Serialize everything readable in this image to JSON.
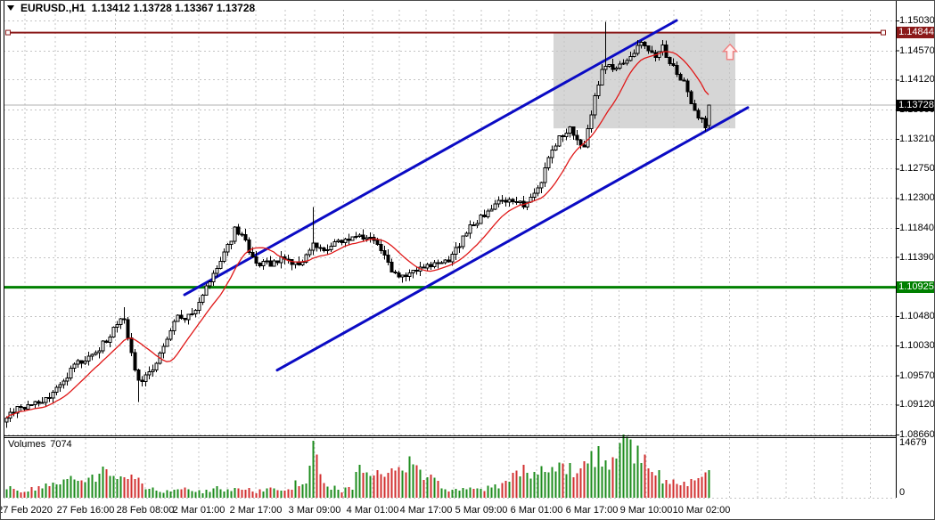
{
  "header": {
    "symbol_timeframe": "EURUSD.,H1",
    "ohlc": "1.13412 1.13728 1.13367 1.13728"
  },
  "chart_data": {
    "type": "candlestick",
    "symbol": "EURUSD.",
    "timeframe": "H1",
    "title": "EURUSD.,H1 1.13412 1.13728 1.13367 1.13728",
    "current_bar": {
      "open": 1.13412,
      "high": 1.13728,
      "low": 1.13367,
      "close": 1.13728
    },
    "price_ticks": [
      "1.15030",
      "1.14570",
      "1.14120",
      "1.13660",
      "1.13210",
      "1.12750",
      "1.12300",
      "1.11840",
      "1.11390",
      "1.10480",
      "1.10030",
      "1.09570",
      "1.09120",
      "1.08660"
    ],
    "time_ticks": [
      "27 Feb 2020",
      "27 Feb 16:00",
      "28 Feb 08:00",
      "2 Mar 01:00",
      "2 Mar 17:00",
      "3 Mar 09:00",
      "4 Mar 01:00",
      "4 Mar 17:00",
      "5 Mar 09:00",
      "6 Mar 01:00",
      "6 Mar 17:00",
      "9 Mar 10:00",
      "10 Mar 02:00"
    ],
    "ylim": [
      1.0866,
      1.1503
    ],
    "levels": {
      "resistance": {
        "price": "1.14844",
        "color": "#8b1a1a"
      },
      "current": {
        "price": "1.13728",
        "color": "#000000"
      },
      "support": {
        "price": "1.10925",
        "color": "#008000"
      }
    },
    "channel": {
      "color": "#0b0bc4",
      "upper_line": {
        "from": [
          50,
          1.1081
        ],
        "to": [
          188,
          1.1503
        ]
      },
      "lower_line": {
        "from": [
          76,
          1.0965
        ],
        "to": [
          208,
          1.1369
        ]
      }
    },
    "highlight_zone": {
      "from_bar": 154,
      "to_bar": 204,
      "price_top": 1.1484,
      "price_bottom": 1.1337,
      "color": "#d6d6d6"
    },
    "signal_arrow": {
      "bar": 203,
      "price": 1.1454,
      "direction": "up",
      "color": "#ef7d7d"
    },
    "ma_line": {
      "color": "#e01818"
    },
    "candle_colors": {
      "bull_fill": "#ffffff",
      "bear_fill": "#000000",
      "outline": "#000000"
    },
    "bars_visible": 198,
    "price_path_anchors": [
      [
        0,
        1.0893
      ],
      [
        3,
        1.0905
      ],
      [
        6,
        1.0912
      ],
      [
        10,
        1.0918
      ],
      [
        13,
        1.0928
      ],
      [
        16,
        1.0952
      ],
      [
        20,
        1.0975
      ],
      [
        25,
        1.0992
      ],
      [
        28,
        1.1012
      ],
      [
        31,
        1.104
      ],
      [
        33,
        1.1048
      ],
      [
        34,
        1.101
      ],
      [
        37,
        1.0948
      ],
      [
        40,
        1.096
      ],
      [
        43,
        1.099
      ],
      [
        47,
        1.1042
      ],
      [
        52,
        1.1052
      ],
      [
        55,
        1.108
      ],
      [
        58,
        1.111
      ],
      [
        61,
        1.1145
      ],
      [
        64,
        1.118
      ],
      [
        66,
        1.1178
      ],
      [
        68,
        1.1142
      ],
      [
        71,
        1.1128
      ],
      [
        74,
        1.113
      ],
      [
        78,
        1.1138
      ],
      [
        82,
        1.1126
      ],
      [
        86,
        1.1158
      ],
      [
        89,
        1.1152
      ],
      [
        93,
        1.116
      ],
      [
        97,
        1.1168
      ],
      [
        101,
        1.1172
      ],
      [
        104,
        1.1158
      ],
      [
        107,
        1.1126
      ],
      [
        110,
        1.1106
      ],
      [
        113,
        1.1112
      ],
      [
        116,
        1.1126
      ],
      [
        120,
        1.1128
      ],
      [
        124,
        1.1132
      ],
      [
        127,
        1.1158
      ],
      [
        130,
        1.1188
      ],
      [
        134,
        1.1202
      ],
      [
        138,
        1.1226
      ],
      [
        142,
        1.123
      ],
      [
        146,
        1.1218
      ],
      [
        149,
        1.1242
      ],
      [
        152,
        1.1288
      ],
      [
        155,
        1.1322
      ],
      [
        158,
        1.134
      ],
      [
        160,
        1.1322
      ],
      [
        162,
        1.1308
      ],
      [
        164,
        1.1362
      ],
      [
        166,
        1.1408
      ],
      [
        168,
        1.1438
      ],
      [
        170,
        1.1425
      ],
      [
        173,
        1.1438
      ],
      [
        176,
        1.1452
      ],
      [
        178,
        1.1468
      ],
      [
        180,
        1.1455
      ],
      [
        182,
        1.1448
      ],
      [
        184,
        1.146
      ],
      [
        186,
        1.1438
      ],
      [
        188,
        1.1422
      ],
      [
        190,
        1.1408
      ],
      [
        192,
        1.138
      ],
      [
        194,
        1.1358
      ],
      [
        196,
        1.134
      ],
      [
        197,
        1.1373
      ]
    ],
    "wick_overrides": [
      {
        "bar": 33,
        "high": 1.1062
      },
      {
        "bar": 37,
        "low": 1.0916
      },
      {
        "bar": 86,
        "high": 1.1216
      },
      {
        "bar": 168,
        "high": 1.1501
      }
    ],
    "volume_pane": {
      "label": "Volumes",
      "current": "7074",
      "axis_max": "14679",
      "axis_zero": "0",
      "up_color": "#1e8c1e",
      "down_color": "#d23030",
      "anchors": [
        [
          0,
          2600
        ],
        [
          4,
          1600
        ],
        [
          8,
          2400
        ],
        [
          14,
          3400
        ],
        [
          20,
          4800
        ],
        [
          26,
          5800
        ],
        [
          28,
          7000
        ],
        [
          31,
          5200
        ],
        [
          34,
          6200
        ],
        [
          38,
          3400
        ],
        [
          43,
          1400
        ],
        [
          47,
          1800
        ],
        [
          51,
          2200
        ],
        [
          55,
          1400
        ],
        [
          59,
          2500
        ],
        [
          62,
          1700
        ],
        [
          66,
          2800
        ],
        [
          70,
          1600
        ],
        [
          74,
          2300
        ],
        [
          78,
          1500
        ],
        [
          81,
          3500
        ],
        [
          84,
          3200
        ],
        [
          86,
          14679
        ],
        [
          88,
          4800
        ],
        [
          91,
          2800
        ],
        [
          94,
          1900
        ],
        [
          97,
          2600
        ],
        [
          99,
          7800
        ],
        [
          102,
          6200
        ],
        [
          105,
          6600
        ],
        [
          108,
          7000
        ],
        [
          111,
          7800
        ],
        [
          113,
          8800
        ],
        [
          115,
          7400
        ],
        [
          118,
          5400
        ],
        [
          121,
          3600
        ],
        [
          124,
          2200
        ],
        [
          127,
          1700
        ],
        [
          130,
          2800
        ],
        [
          133,
          2000
        ],
        [
          136,
          2600
        ],
        [
          140,
          4000
        ],
        [
          143,
          7000
        ],
        [
          146,
          7400
        ],
        [
          149,
          6000
        ],
        [
          152,
          8200
        ],
        [
          155,
          10000
        ],
        [
          157,
          6600
        ],
        [
          160,
          7800
        ],
        [
          163,
          12600
        ],
        [
          166,
          10400
        ],
        [
          169,
          9000
        ],
        [
          172,
          13600
        ],
        [
          175,
          12000
        ],
        [
          178,
          10600
        ],
        [
          181,
          7400
        ],
        [
          184,
          4600
        ],
        [
          187,
          4800
        ],
        [
          190,
          3400
        ],
        [
          193,
          5200
        ],
        [
          196,
          8600
        ],
        [
          197,
          7074
        ]
      ]
    }
  }
}
